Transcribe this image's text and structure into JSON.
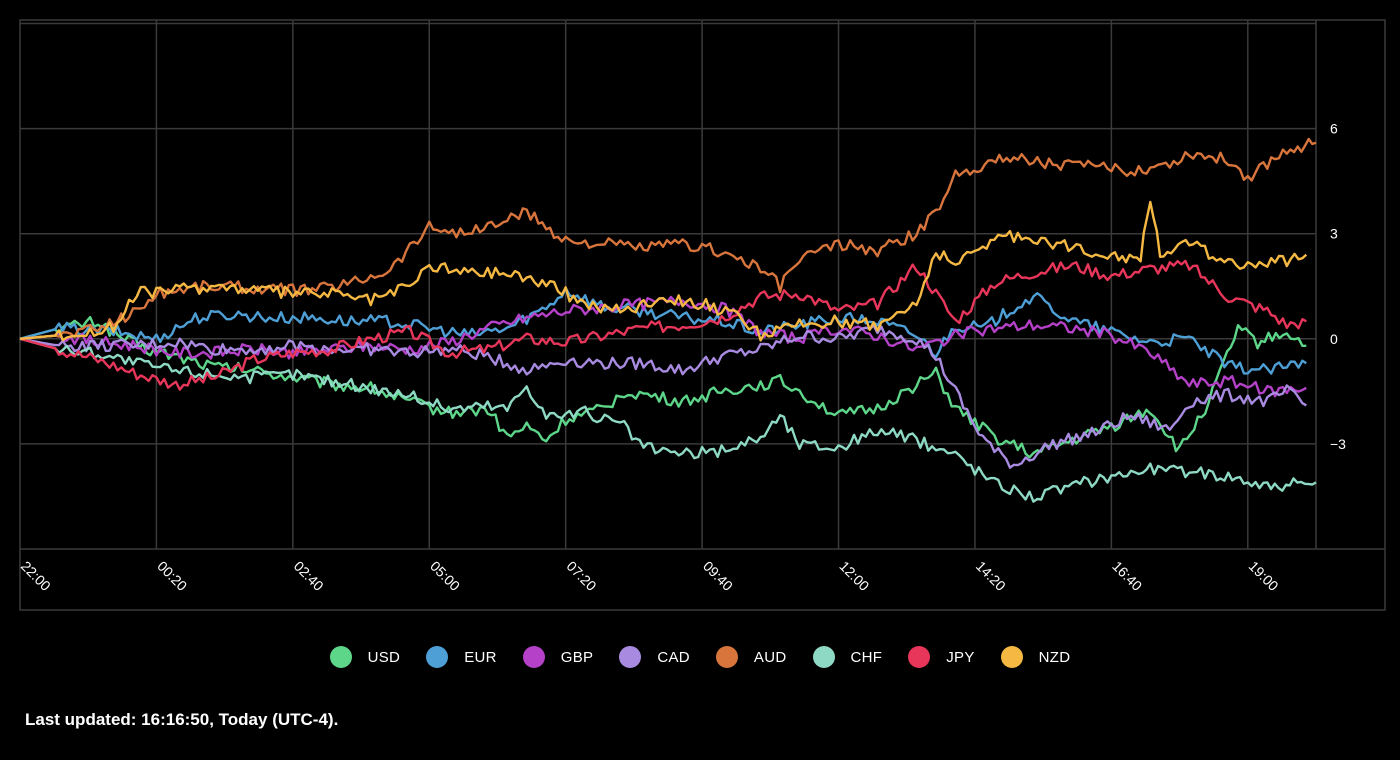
{
  "chart_data": {
    "type": "line",
    "x_ticks": [
      "22:00",
      "00:20",
      "02:40",
      "05:00",
      "07:20",
      "09:40",
      "12:00",
      "14:20",
      "16:40",
      "19:00"
    ],
    "y_ticks": [
      6,
      3,
      0,
      -3
    ],
    "ylim": [
      -6,
      9.1
    ],
    "x_range_minutes": [
      0,
      1330
    ],
    "grid": true,
    "legend_position": "bottom-center",
    "series": [
      {
        "name": "USD",
        "color": "#5dd68a",
        "points": [
          [
            0,
            0
          ],
          [
            40,
            0.3
          ],
          [
            80,
            0.5
          ],
          [
            100,
            0.1
          ],
          [
            130,
            -0.3
          ],
          [
            160,
            -0.5
          ],
          [
            200,
            -0.8
          ],
          [
            240,
            -0.9
          ],
          [
            280,
            -1.1
          ],
          [
            320,
            -1.3
          ],
          [
            360,
            -1.4
          ],
          [
            400,
            -1.8
          ],
          [
            440,
            -2.1
          ],
          [
            480,
            -2.0
          ],
          [
            500,
            -2.8
          ],
          [
            520,
            -2.5
          ],
          [
            540,
            -2.9
          ],
          [
            560,
            -2.3
          ],
          [
            600,
            -2.0
          ],
          [
            620,
            -1.5
          ],
          [
            640,
            -1.6
          ],
          [
            680,
            -1.8
          ],
          [
            720,
            -1.5
          ],
          [
            760,
            -1.3
          ],
          [
            780,
            -1.2
          ],
          [
            800,
            -1.5
          ],
          [
            840,
            -2.2
          ],
          [
            880,
            -2.0
          ],
          [
            920,
            -1.3
          ],
          [
            940,
            -1.0
          ],
          [
            960,
            -2.0
          ],
          [
            1000,
            -2.8
          ],
          [
            1040,
            -3.3
          ],
          [
            1080,
            -2.9
          ],
          [
            1120,
            -2.5
          ],
          [
            1160,
            -2.0
          ],
          [
            1190,
            -3.2
          ],
          [
            1220,
            -1.8
          ],
          [
            1250,
            0.3
          ],
          [
            1270,
            -0.1
          ],
          [
            1300,
            0.2
          ],
          [
            1320,
            -0.2
          ]
        ]
      },
      {
        "name": "EUR",
        "color": "#4e9fd6",
        "points": [
          [
            0,
            0
          ],
          [
            40,
            0.3
          ],
          [
            100,
            0.2
          ],
          [
            140,
            0.0
          ],
          [
            180,
            0.6
          ],
          [
            220,
            0.7
          ],
          [
            260,
            0.6
          ],
          [
            300,
            0.6
          ],
          [
            340,
            0.5
          ],
          [
            380,
            0.5
          ],
          [
            420,
            0.3
          ],
          [
            460,
            0.1
          ],
          [
            500,
            0.3
          ],
          [
            540,
            0.9
          ],
          [
            560,
            1.4
          ],
          [
            600,
            0.9
          ],
          [
            640,
            0.8
          ],
          [
            680,
            0.6
          ],
          [
            720,
            0.5
          ],
          [
            760,
            0.2
          ],
          [
            800,
            0.4
          ],
          [
            840,
            0.6
          ],
          [
            880,
            0.5
          ],
          [
            920,
            0.1
          ],
          [
            940,
            -0.4
          ],
          [
            960,
            0.4
          ],
          [
            990,
            0.3
          ],
          [
            1020,
            0.9
          ],
          [
            1040,
            1.2
          ],
          [
            1080,
            0.5
          ],
          [
            1120,
            0.2
          ],
          [
            1160,
            -0.1
          ],
          [
            1200,
            0.0
          ],
          [
            1240,
            -0.8
          ],
          [
            1280,
            -0.9
          ],
          [
            1320,
            -0.7
          ]
        ]
      },
      {
        "name": "GBP",
        "color": "#b541c9",
        "points": [
          [
            0,
            0
          ],
          [
            40,
            0.1
          ],
          [
            80,
            -0.1
          ],
          [
            120,
            -0.2
          ],
          [
            160,
            -0.4
          ],
          [
            200,
            -0.4
          ],
          [
            240,
            -0.3
          ],
          [
            280,
            -0.4
          ],
          [
            320,
            -0.3
          ],
          [
            360,
            -0.2
          ],
          [
            400,
            -0.3
          ],
          [
            440,
            -0.1
          ],
          [
            480,
            0.3
          ],
          [
            520,
            0.6
          ],
          [
            560,
            0.8
          ],
          [
            600,
            0.9
          ],
          [
            640,
            1.0
          ],
          [
            680,
            1.1
          ],
          [
            720,
            0.9
          ],
          [
            760,
            0.2
          ],
          [
            800,
            0.0
          ],
          [
            840,
            0.3
          ],
          [
            880,
            0.1
          ],
          [
            920,
            -0.3
          ],
          [
            960,
            0.1
          ],
          [
            1000,
            0.3
          ],
          [
            1040,
            0.4
          ],
          [
            1080,
            0.3
          ],
          [
            1120,
            0.1
          ],
          [
            1160,
            -0.4
          ],
          [
            1200,
            -1.3
          ],
          [
            1240,
            -1.2
          ],
          [
            1280,
            -1.5
          ],
          [
            1320,
            -1.4
          ]
        ]
      },
      {
        "name": "CAD",
        "color": "#a88be0",
        "points": [
          [
            0,
            0
          ],
          [
            40,
            -0.2
          ],
          [
            80,
            -0.2
          ],
          [
            120,
            -0.2
          ],
          [
            160,
            -0.1
          ],
          [
            200,
            -0.3
          ],
          [
            240,
            -0.3
          ],
          [
            280,
            -0.2
          ],
          [
            320,
            -0.3
          ],
          [
            360,
            -0.3
          ],
          [
            400,
            -0.4
          ],
          [
            440,
            -0.3
          ],
          [
            480,
            -0.5
          ],
          [
            520,
            -0.9
          ],
          [
            560,
            -0.6
          ],
          [
            600,
            -0.7
          ],
          [
            640,
            -0.7
          ],
          [
            680,
            -0.9
          ],
          [
            720,
            -0.5
          ],
          [
            760,
            -0.3
          ],
          [
            800,
            0.1
          ],
          [
            840,
            0.0
          ],
          [
            880,
            0.3
          ],
          [
            920,
            0.0
          ],
          [
            940,
            -0.5
          ],
          [
            960,
            -1.5
          ],
          [
            980,
            -2.5
          ],
          [
            1000,
            -3.2
          ],
          [
            1020,
            -3.6
          ],
          [
            1060,
            -3.0
          ],
          [
            1100,
            -2.7
          ],
          [
            1140,
            -2.2
          ],
          [
            1180,
            -2.6
          ],
          [
            1200,
            -1.8
          ],
          [
            1240,
            -1.6
          ],
          [
            1280,
            -1.8
          ],
          [
            1300,
            -1.5
          ],
          [
            1320,
            -1.9
          ]
        ]
      },
      {
        "name": "AUD",
        "color": "#d8753c",
        "points": [
          [
            0,
            0
          ],
          [
            40,
            0.1
          ],
          [
            80,
            0.3
          ],
          [
            120,
            0.8
          ],
          [
            140,
            1.3
          ],
          [
            180,
            1.5
          ],
          [
            220,
            1.5
          ],
          [
            260,
            1.4
          ],
          [
            300,
            1.4
          ],
          [
            340,
            1.6
          ],
          [
            380,
            2.0
          ],
          [
            420,
            3.2
          ],
          [
            460,
            3.0
          ],
          [
            500,
            3.4
          ],
          [
            520,
            3.6
          ],
          [
            560,
            2.8
          ],
          [
            600,
            2.7
          ],
          [
            640,
            2.6
          ],
          [
            680,
            2.7
          ],
          [
            720,
            2.5
          ],
          [
            760,
            2.0
          ],
          [
            780,
            1.5
          ],
          [
            800,
            2.3
          ],
          [
            840,
            2.7
          ],
          [
            880,
            2.5
          ],
          [
            920,
            3.0
          ],
          [
            940,
            3.6
          ],
          [
            960,
            4.7
          ],
          [
            990,
            5.0
          ],
          [
            1020,
            5.2
          ],
          [
            1060,
            5.0
          ],
          [
            1100,
            4.9
          ],
          [
            1140,
            4.8
          ],
          [
            1180,
            5.0
          ],
          [
            1200,
            5.3
          ],
          [
            1240,
            5.1
          ],
          [
            1260,
            4.6
          ],
          [
            1280,
            5.0
          ],
          [
            1300,
            5.4
          ],
          [
            1330,
            5.6
          ]
        ]
      },
      {
        "name": "CHF",
        "color": "#8ed9c4",
        "points": [
          [
            0,
            0
          ],
          [
            40,
            -0.3
          ],
          [
            80,
            -0.4
          ],
          [
            120,
            -0.7
          ],
          [
            160,
            -0.9
          ],
          [
            200,
            -1.0
          ],
          [
            240,
            -1.1
          ],
          [
            280,
            -1.0
          ],
          [
            320,
            -1.2
          ],
          [
            360,
            -1.4
          ],
          [
            400,
            -1.6
          ],
          [
            440,
            -2.0
          ],
          [
            480,
            -1.9
          ],
          [
            500,
            -2.0
          ],
          [
            520,
            -1.3
          ],
          [
            540,
            -2.2
          ],
          [
            580,
            -2.1
          ],
          [
            620,
            -2.5
          ],
          [
            640,
            -3.1
          ],
          [
            680,
            -3.3
          ],
          [
            720,
            -3.2
          ],
          [
            760,
            -2.8
          ],
          [
            780,
            -2.2
          ],
          [
            800,
            -3.0
          ],
          [
            840,
            -3.1
          ],
          [
            880,
            -2.6
          ],
          [
            920,
            -2.9
          ],
          [
            960,
            -3.3
          ],
          [
            1000,
            -4.1
          ],
          [
            1040,
            -4.5
          ],
          [
            1080,
            -4.2
          ],
          [
            1120,
            -3.9
          ],
          [
            1160,
            -3.7
          ],
          [
            1200,
            -3.8
          ],
          [
            1240,
            -3.9
          ],
          [
            1280,
            -4.2
          ],
          [
            1330,
            -4.1
          ]
        ]
      },
      {
        "name": "JPY",
        "color": "#e8365b",
        "points": [
          [
            0,
            0
          ],
          [
            40,
            -0.3
          ],
          [
            80,
            -0.6
          ],
          [
            120,
            -1.0
          ],
          [
            160,
            -1.3
          ],
          [
            200,
            -1.1
          ],
          [
            240,
            -0.6
          ],
          [
            280,
            -0.4
          ],
          [
            320,
            -0.3
          ],
          [
            360,
            0.0
          ],
          [
            400,
            0.2
          ],
          [
            440,
            -0.4
          ],
          [
            480,
            -0.3
          ],
          [
            520,
            0.0
          ],
          [
            560,
            -0.1
          ],
          [
            600,
            0.1
          ],
          [
            640,
            0.3
          ],
          [
            680,
            0.4
          ],
          [
            720,
            0.6
          ],
          [
            760,
            1.2
          ],
          [
            800,
            1.3
          ],
          [
            840,
            0.8
          ],
          [
            880,
            1.0
          ],
          [
            920,
            2.1
          ],
          [
            960,
            0.5
          ],
          [
            1000,
            1.6
          ],
          [
            1040,
            1.9
          ],
          [
            1080,
            2.1
          ],
          [
            1120,
            1.8
          ],
          [
            1160,
            2.0
          ],
          [
            1200,
            2.1
          ],
          [
            1240,
            1.2
          ],
          [
            1280,
            0.8
          ],
          [
            1300,
            0.4
          ],
          [
            1320,
            0.5
          ]
        ]
      },
      {
        "name": "NZD",
        "color": "#f5b943",
        "points": [
          [
            0,
            0
          ],
          [
            40,
            0.1
          ],
          [
            80,
            0.2
          ],
          [
            100,
            0.4
          ],
          [
            120,
            1.3
          ],
          [
            160,
            1.4
          ],
          [
            200,
            1.5
          ],
          [
            240,
            1.4
          ],
          [
            280,
            1.3
          ],
          [
            320,
            1.3
          ],
          [
            360,
            1.1
          ],
          [
            400,
            1.5
          ],
          [
            420,
            2.1
          ],
          [
            460,
            1.9
          ],
          [
            500,
            1.9
          ],
          [
            540,
            1.6
          ],
          [
            580,
            1.0
          ],
          [
            620,
            0.8
          ],
          [
            660,
            1.2
          ],
          [
            700,
            1.0
          ],
          [
            740,
            0.6
          ],
          [
            760,
            0.1
          ],
          [
            800,
            0.4
          ],
          [
            840,
            0.5
          ],
          [
            880,
            0.4
          ],
          [
            920,
            1.0
          ],
          [
            940,
            2.5
          ],
          [
            960,
            2.1
          ],
          [
            1000,
            2.9
          ],
          [
            1040,
            2.9
          ],
          [
            1080,
            2.6
          ],
          [
            1120,
            2.4
          ],
          [
            1150,
            2.3
          ],
          [
            1160,
            4.0
          ],
          [
            1170,
            2.5
          ],
          [
            1200,
            2.7
          ],
          [
            1240,
            2.2
          ],
          [
            1280,
            2.1
          ],
          [
            1320,
            2.4
          ]
        ]
      }
    ]
  },
  "footer": {
    "text": "Last updated: 16:16:50, Today (UTC-4)."
  }
}
